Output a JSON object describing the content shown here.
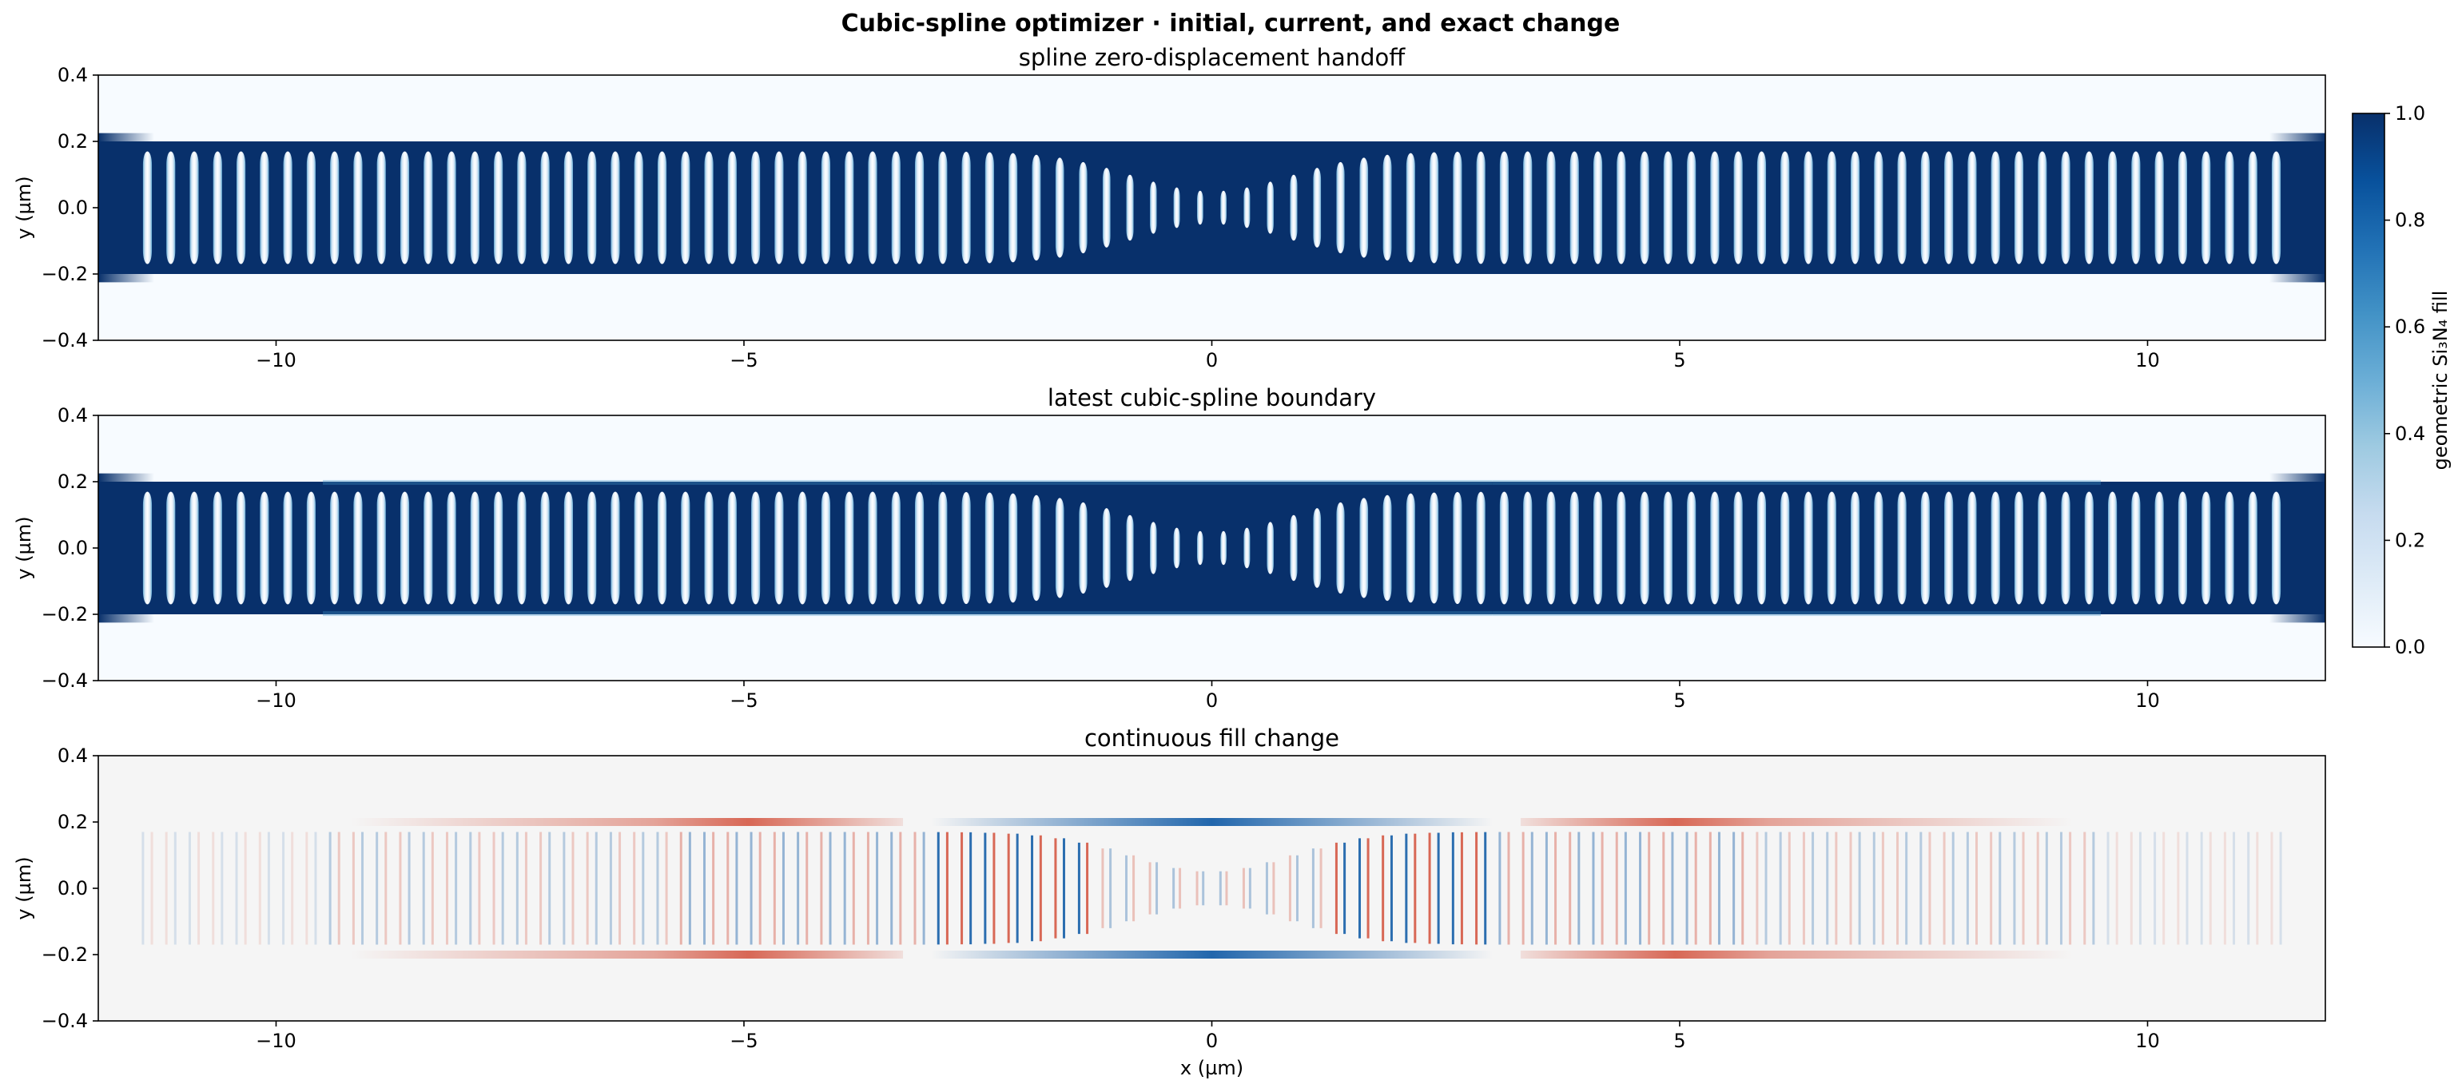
{
  "figure": {
    "title": "Cubic-spline optimizer · initial, current, and exact change"
  },
  "chart_data": [
    {
      "type": "heatmap",
      "title": "spline zero-displacement handoff",
      "xlabel": "",
      "ylabel": "y (µm)",
      "xlim": [
        -11.9,
        11.9
      ],
      "ylim": [
        -0.4,
        0.4
      ],
      "xticks": [
        -10,
        -5,
        0,
        5,
        10
      ],
      "yticks": [
        -0.4,
        -0.2,
        0.0,
        0.2,
        0.4
      ],
      "xtick_labels": [
        "−10",
        "−5",
        "0",
        "5",
        "10"
      ],
      "ytick_labels": [
        "−0.4",
        "−0.2",
        "0.0",
        "0.2",
        "0.4"
      ],
      "colormap": "Blues",
      "waveguide_half_width": 0.2,
      "hole_count": 92,
      "hole_pitch": 0.25,
      "hole_half_height_max": 0.17,
      "hole_half_height_center": 0.05
    },
    {
      "type": "heatmap",
      "title": "latest cubic-spline boundary",
      "xlabel": "",
      "ylabel": "y (µm)",
      "xlim": [
        -11.9,
        11.9
      ],
      "ylim": [
        -0.4,
        0.4
      ],
      "xticks": [
        -10,
        -5,
        0,
        5,
        10
      ],
      "yticks": [
        -0.4,
        -0.2,
        0.0,
        0.2,
        0.4
      ],
      "xtick_labels": [
        "−10",
        "−5",
        "0",
        "5",
        "10"
      ],
      "ytick_labels": [
        "−0.4",
        "−0.2",
        "0.0",
        "0.2",
        "0.4"
      ],
      "colormap": "Blues",
      "waveguide_half_width": 0.2,
      "hole_count": 92,
      "hole_pitch": 0.25
    },
    {
      "type": "heatmap",
      "title": "continuous fill change",
      "xlabel": "x (µm)",
      "ylabel": "y (µm)",
      "xlim": [
        -11.9,
        11.9
      ],
      "ylim": [
        -0.4,
        0.4
      ],
      "xticks": [
        -10,
        -5,
        0,
        5,
        10
      ],
      "yticks": [
        -0.4,
        -0.2,
        0.0,
        0.2,
        0.4
      ],
      "xtick_labels": [
        "−10",
        "−5",
        "0",
        "5",
        "10"
      ],
      "ytick_labels": [
        "−0.4",
        "−0.2",
        "0.0",
        "0.2",
        "0.4"
      ],
      "colormap": "RdBu",
      "edge_bands": [
        {
          "x_from": -9.2,
          "x_to": -3.3,
          "y": 0.2,
          "sign": "positive"
        },
        {
          "x_from": -3.0,
          "x_to": 3.0,
          "y": 0.2,
          "sign": "negative"
        },
        {
          "x_from": 3.3,
          "x_to": 9.2,
          "y": 0.2,
          "sign": "positive"
        },
        {
          "x_from": -9.2,
          "x_to": -3.3,
          "y": -0.2,
          "sign": "positive"
        },
        {
          "x_from": -3.0,
          "x_to": 3.0,
          "y": -0.2,
          "sign": "negative"
        },
        {
          "x_from": 3.3,
          "x_to": 9.2,
          "y": -0.2,
          "sign": "positive"
        }
      ]
    }
  ],
  "colorbar": {
    "label": "geometric Si₃N₄ fill",
    "range": [
      0.0,
      1.0
    ],
    "ticks": [
      0.0,
      0.2,
      0.4,
      0.6,
      0.8,
      1.0
    ],
    "tick_labels": [
      "0.0",
      "0.2",
      "0.4",
      "0.6",
      "0.8",
      "1.0"
    ]
  },
  "colors": {
    "core": "#08306b",
    "background": "#f7fbff",
    "diff_background": "#f5f5f5",
    "diff_positive": "#d6604d",
    "diff_negative": "#2166ac"
  }
}
